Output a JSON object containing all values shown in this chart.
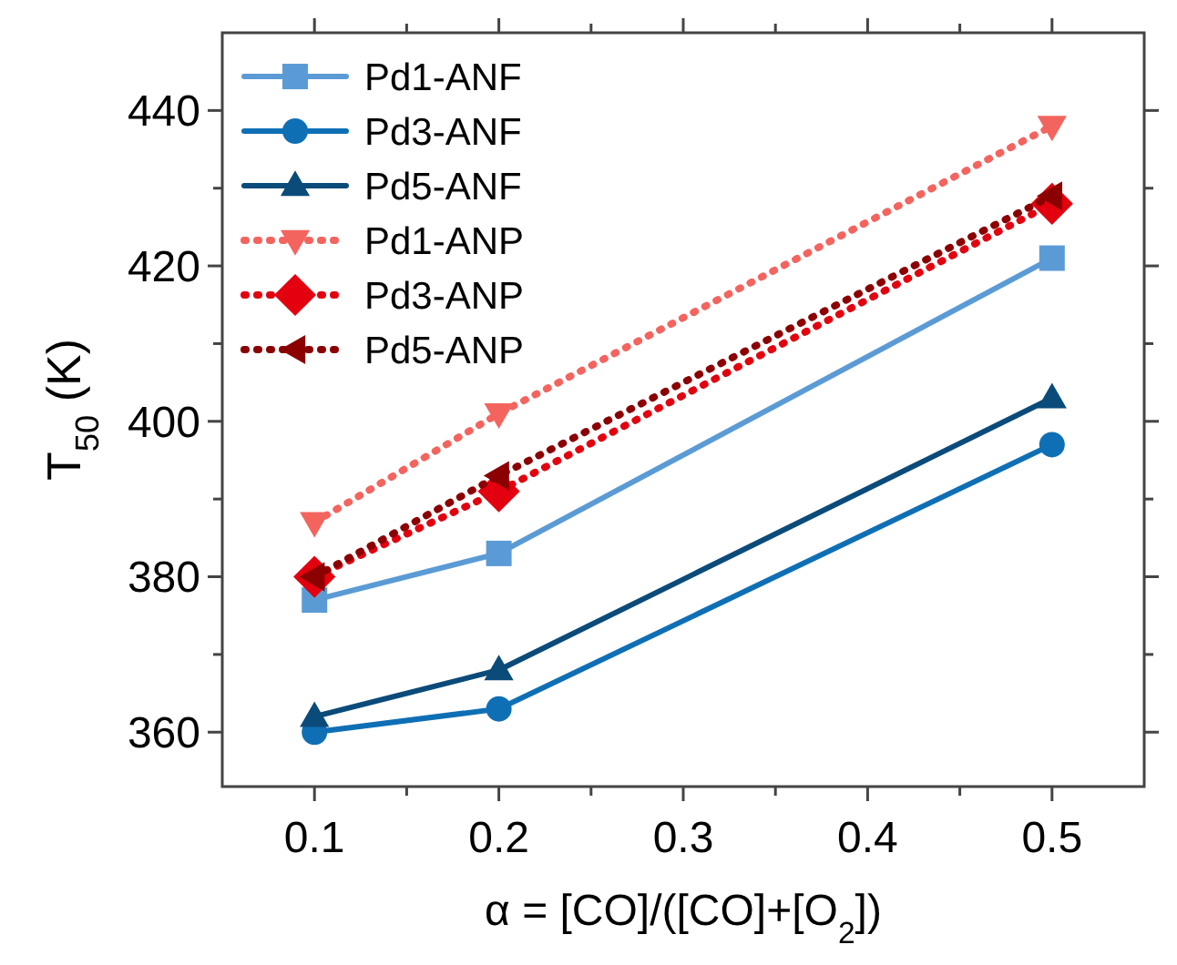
{
  "chart_data": {
    "type": "line",
    "xlabel": "α = [CO]/([CO]+[O$_{2}$])",
    "ylabel": "T$_{50}$ (K)",
    "x": [
      0.1,
      0.2,
      0.5
    ],
    "xlim": [
      0.05,
      0.55
    ],
    "xticks": [
      {
        "value": 0.1,
        "label": "0.1"
      },
      {
        "value": 0.15,
        "label": null
      },
      {
        "value": 0.2,
        "label": "0.2"
      },
      {
        "value": 0.25,
        "label": null
      },
      {
        "value": 0.3,
        "label": "0.3"
      },
      {
        "value": 0.35,
        "label": null
      },
      {
        "value": 0.4,
        "label": "0.4"
      },
      {
        "value": 0.45,
        "label": null
      },
      {
        "value": 0.5,
        "label": "0.5"
      }
    ],
    "ylim": [
      353,
      450
    ],
    "yticks": [
      360,
      {
        "value": 370,
        "label": null
      },
      380,
      {
        "value": 390,
        "label": null
      },
      400,
      {
        "value": 410,
        "label": null
      },
      420,
      {
        "value": 430,
        "label": null
      },
      440
    ],
    "grid": false,
    "legend": "top left",
    "series": [
      {
        "name": "Pd1-ANF",
        "color": "#5b9bd5",
        "marker": "square",
        "line_style": "solid",
        "values": [
          377,
          383,
          421
        ]
      },
      {
        "name": "Pd3-ANF",
        "color": "#0f6fb5",
        "marker": "circle",
        "line_style": "solid",
        "values": [
          360,
          363,
          397
        ]
      },
      {
        "name": "Pd5-ANF",
        "color": "#0b4b7a",
        "marker": "triangle",
        "line_style": "solid",
        "values": [
          362,
          368,
          403
        ]
      },
      {
        "name": "Pd1-ANP",
        "color": "#f4645f",
        "marker": "triangle-down",
        "line_style": "dotted",
        "values": [
          387,
          401,
          438
        ]
      },
      {
        "name": "Pd3-ANP",
        "color": "#e3000f",
        "marker": "diamond",
        "line_style": "dotted",
        "values": [
          380,
          391,
          428
        ]
      },
      {
        "name": "Pd5-ANP",
        "color": "#8b0000",
        "marker": "triangle-left",
        "line_style": "dotted",
        "values": [
          380,
          393,
          429
        ]
      }
    ]
  }
}
